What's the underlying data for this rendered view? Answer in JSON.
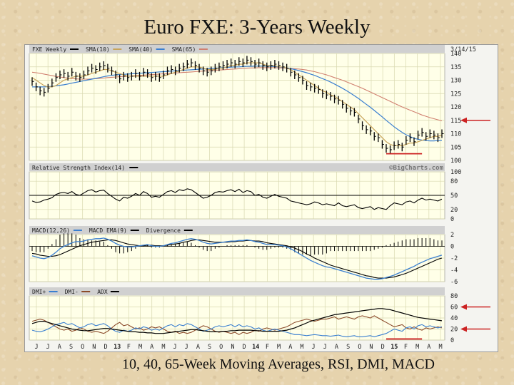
{
  "title": "Euro FXE: 3-Years Weekly",
  "caption": "10, 40, 65-Week Moving Averages, RSI, DMI, MACD",
  "chart_data": {
    "type": "line",
    "date": "3/14/15",
    "watermark": "©BigCharts.com",
    "x_labels": [
      "J",
      "J",
      "A",
      "S",
      "O",
      "N",
      "D",
      "13",
      "F",
      "M",
      "A",
      "M",
      "J",
      "J",
      "A",
      "S",
      "O",
      "N",
      "D",
      "14",
      "F",
      "M",
      "A",
      "M",
      "J",
      "J",
      "A",
      "S",
      "O",
      "N",
      "D",
      "15",
      "F",
      "M",
      "A",
      "M"
    ],
    "price": {
      "legend": [
        "FXE Weekly",
        "SMA(10)",
        "SMA(40)",
        "SMA(65)"
      ],
      "ylim": [
        100,
        140
      ],
      "yticks": [
        100,
        105,
        110,
        115,
        120,
        125,
        130,
        135,
        140
      ],
      "tick_labels": [
        "100",
        "105",
        "110",
        "115",
        "120",
        "125",
        "130",
        "135",
        "140"
      ],
      "close": [
        129.5,
        127.5,
        126.0,
        125.5,
        127.0,
        129.0,
        131.0,
        132.0,
        132.5,
        131.5,
        133.0,
        131.5,
        131.0,
        132.0,
        133.5,
        134.5,
        134.0,
        135.0,
        135.5,
        134.5,
        133.5,
        132.0,
        130.5,
        131.5,
        131.0,
        131.5,
        132.5,
        131.5,
        133.0,
        132.5,
        131.0,
        131.5,
        131.0,
        132.0,
        133.5,
        134.0,
        133.5,
        134.5,
        135.0,
        136.0,
        136.5,
        135.5,
        134.5,
        133.5,
        133.0,
        133.5,
        134.5,
        135.0,
        135.5,
        136.0,
        136.5,
        136.0,
        137.0,
        136.5,
        137.5,
        137.0,
        136.0,
        136.5,
        135.5,
        135.0,
        135.5,
        136.0,
        135.5,
        135.0,
        134.5,
        133.0,
        132.0,
        131.0,
        130.0,
        128.0,
        127.5,
        127.0,
        126.5,
        125.0,
        124.5,
        124.0,
        123.0,
        122.5,
        121.0,
        119.5,
        118.5,
        118.0,
        115.5,
        113.0,
        111.5,
        111.0,
        109.0,
        108.5,
        106.0,
        104.5,
        104.0,
        105.5,
        106.0,
        105.0,
        107.5,
        108.5,
        107.0,
        109.5,
        110.5,
        109.0,
        110.0,
        109.5,
        108.5,
        110.0
      ],
      "sma10": [
        131.0,
        130.0,
        129.0,
        128.0,
        127.5,
        127.5,
        128.0,
        129.0,
        130.0,
        130.5,
        131.0,
        131.5,
        131.5,
        131.5,
        132.0,
        132.5,
        133.0,
        133.5,
        134.0,
        134.0,
        133.5,
        133.0,
        132.5,
        132.0,
        131.5,
        131.5,
        131.5,
        131.5,
        131.5,
        131.5,
        131.5,
        131.5,
        131.5,
        131.5,
        132.0,
        132.5,
        133.0,
        133.5,
        134.0,
        134.5,
        135.0,
        135.0,
        135.0,
        134.5,
        134.0,
        134.0,
        134.0,
        134.5,
        134.5,
        135.0,
        135.5,
        135.5,
        136.0,
        136.0,
        136.5,
        136.5,
        136.5,
        136.5,
        136.0,
        135.5,
        135.5,
        135.5,
        135.0,
        135.0,
        134.5,
        134.0,
        133.0,
        132.0,
        131.0,
        130.0,
        129.0,
        128.0,
        127.0,
        126.0,
        125.5,
        124.5,
        124.0,
        123.0,
        122.0,
        121.0,
        120.0,
        119.0,
        117.5,
        116.0,
        114.5,
        113.0,
        111.5,
        110.0,
        108.5,
        107.0,
        106.0,
        105.5,
        105.5,
        105.5,
        106.0,
        106.5,
        106.5,
        107.0,
        107.5,
        108.0,
        108.5,
        109.0,
        109.0,
        109.5
      ],
      "sma40": [
        127.5,
        127.5,
        127.5,
        127.5,
        127.6,
        127.7,
        127.9,
        128.1,
        128.3,
        128.6,
        128.9,
        129.2,
        129.5,
        129.8,
        130.1,
        130.4,
        130.7,
        131.0,
        131.3,
        131.6,
        131.8,
        132.0,
        132.1,
        132.2,
        132.3,
        132.4,
        132.5,
        132.6,
        132.7,
        132.8,
        132.9,
        133.0,
        133.1,
        133.2,
        133.3,
        133.4,
        133.5,
        133.6,
        133.7,
        133.8,
        133.9,
        134.0,
        134.1,
        134.2,
        134.3,
        134.4,
        134.5,
        134.6,
        134.7,
        134.8,
        134.9,
        135.0,
        135.0,
        135.1,
        135.2,
        135.2,
        135.3,
        135.3,
        135.3,
        135.3,
        135.2,
        135.1,
        135.0,
        134.8,
        134.6,
        134.3,
        134.0,
        133.6,
        133.2,
        132.8,
        132.3,
        131.8,
        131.2,
        130.6,
        130.0,
        129.3,
        128.6,
        127.8,
        127.0,
        126.1,
        125.2,
        124.2,
        123.2,
        122.1,
        121.0,
        119.9,
        118.7,
        117.5,
        116.3,
        115.0,
        113.8,
        112.6,
        111.5,
        110.5,
        109.6,
        108.9,
        108.3,
        107.9,
        107.6,
        107.4,
        107.3,
        107.3,
        107.4,
        107.5
      ],
      "sma65": [
        133.0,
        132.8,
        132.6,
        132.3,
        132.0,
        131.7,
        131.4,
        131.2,
        131.0,
        130.8,
        130.6,
        130.5,
        130.4,
        130.4,
        130.4,
        130.5,
        130.6,
        130.7,
        130.8,
        131.0,
        131.1,
        131.2,
        131.3,
        131.4,
        131.5,
        131.6,
        131.7,
        131.8,
        131.9,
        132.0,
        132.1,
        132.2,
        132.3,
        132.4,
        132.5,
        132.6,
        132.7,
        132.8,
        132.9,
        133.0,
        133.1,
        133.2,
        133.3,
        133.4,
        133.5,
        133.6,
        133.7,
        133.8,
        133.9,
        134.0,
        134.1,
        134.2,
        134.3,
        134.4,
        134.5,
        134.6,
        134.6,
        134.7,
        134.7,
        134.7,
        134.7,
        134.7,
        134.6,
        134.6,
        134.5,
        134.4,
        134.3,
        134.2,
        134.0,
        133.8,
        133.5,
        133.2,
        132.8,
        132.4,
        132.0,
        131.5,
        131.0,
        130.5,
        130.0,
        129.4,
        128.8,
        128.2,
        127.6,
        127.0,
        126.3,
        125.6,
        124.9,
        124.2,
        123.5,
        122.8,
        122.1,
        121.4,
        120.7,
        120.0,
        119.4,
        118.8,
        118.2,
        117.6,
        117.0,
        116.5,
        116.0,
        115.6,
        115.2,
        114.8
      ]
    },
    "rsi": {
      "legend": [
        "Relative Strength Index(14)"
      ],
      "ylim": [
        0,
        100
      ],
      "yticks": [
        0,
        20,
        50,
        80,
        100
      ],
      "tick_labels": [
        "0",
        "20",
        "50",
        "80",
        "100"
      ],
      "values": [
        38,
        35,
        36,
        40,
        42,
        45,
        52,
        55,
        56,
        54,
        58,
        52,
        50,
        55,
        60,
        62,
        57,
        60,
        61,
        54,
        48,
        42,
        38,
        46,
        44,
        48,
        54,
        50,
        58,
        54,
        46,
        48,
        46,
        52,
        58,
        60,
        56,
        62,
        60,
        64,
        62,
        56,
        50,
        44,
        46,
        50,
        56,
        58,
        57,
        60,
        62,
        58,
        63,
        56,
        60,
        58,
        50,
        52,
        46,
        44,
        48,
        52,
        48,
        46,
        44,
        38,
        36,
        34,
        32,
        30,
        32,
        36,
        34,
        30,
        32,
        30,
        28,
        34,
        28,
        26,
        28,
        30,
        24,
        22,
        24,
        26,
        20,
        24,
        22,
        20,
        28,
        34,
        32,
        30,
        36,
        38,
        34,
        40,
        44,
        40,
        42,
        40,
        38,
        42
      ]
    },
    "macd": {
      "legend": [
        "MACD(12,26)",
        "MACD EMA(9)",
        "Divergence"
      ],
      "ylim": [
        -6,
        2
      ],
      "yticks": [
        -6,
        -4,
        -2,
        0,
        2
      ],
      "tick_labels": [
        "-6",
        "-4",
        "-2",
        "0",
        "2"
      ],
      "macd": [
        -1.6,
        -1.8,
        -2.0,
        -2.1,
        -1.9,
        -1.5,
        -1.0,
        -0.4,
        0.0,
        0.3,
        0.6,
        0.8,
        0.8,
        0.9,
        1.1,
        1.2,
        1.3,
        1.3,
        1.4,
        1.2,
        0.9,
        0.5,
        0.2,
        0.0,
        -0.1,
        -0.1,
        0.0,
        0.1,
        0.2,
        0.3,
        0.1,
        0.0,
        0.0,
        0.1,
        0.3,
        0.5,
        0.6,
        0.8,
        1.0,
        1.2,
        1.3,
        1.2,
        1.0,
        0.7,
        0.5,
        0.4,
        0.5,
        0.6,
        0.7,
        0.8,
        0.9,
        0.9,
        1.0,
        1.0,
        1.1,
        1.0,
        0.8,
        0.7,
        0.5,
        0.3,
        0.3,
        0.3,
        0.2,
        0.1,
        -0.1,
        -0.4,
        -0.8,
        -1.2,
        -1.6,
        -2.0,
        -2.4,
        -2.7,
        -3.0,
        -3.3,
        -3.5,
        -3.6,
        -3.8,
        -4.0,
        -4.2,
        -4.4,
        -4.6,
        -4.8,
        -5.0,
        -5.2,
        -5.4,
        -5.5,
        -5.6,
        -5.6,
        -5.5,
        -5.3,
        -5.1,
        -4.9,
        -4.6,
        -4.3,
        -4.0,
        -3.7,
        -3.4,
        -3.0,
        -2.7,
        -2.4,
        -2.1,
        -1.9,
        -1.7,
        -1.5
      ],
      "signal": [
        -1.2,
        -1.3,
        -1.5,
        -1.6,
        -1.7,
        -1.7,
        -1.6,
        -1.4,
        -1.1,
        -0.8,
        -0.5,
        -0.2,
        0.1,
        0.3,
        0.5,
        0.7,
        0.8,
        0.9,
        1.0,
        1.1,
        1.1,
        1.0,
        0.8,
        0.6,
        0.4,
        0.3,
        0.2,
        0.1,
        0.1,
        0.2,
        0.2,
        0.1,
        0.1,
        0.1,
        0.2,
        0.3,
        0.4,
        0.5,
        0.7,
        0.8,
        1.0,
        1.1,
        1.1,
        1.0,
        0.9,
        0.8,
        0.7,
        0.7,
        0.7,
        0.7,
        0.8,
        0.8,
        0.9,
        0.9,
        1.0,
        1.0,
        0.9,
        0.9,
        0.8,
        0.6,
        0.5,
        0.4,
        0.3,
        0.2,
        0.1,
        -0.1,
        -0.3,
        -0.6,
        -0.9,
        -1.3,
        -1.6,
        -2.0,
        -2.3,
        -2.6,
        -2.9,
        -3.2,
        -3.4,
        -3.6,
        -3.8,
        -4.0,
        -4.2,
        -4.4,
        -4.6,
        -4.8,
        -5.0,
        -5.1,
        -5.3,
        -5.4,
        -5.4,
        -5.4,
        -5.3,
        -5.2,
        -5.0,
        -4.8,
        -4.6,
        -4.3,
        -4.0,
        -3.7,
        -3.4,
        -3.1,
        -2.8,
        -2.5,
        -2.2,
        -2.0
      ]
    },
    "dmi": {
      "legend": [
        "DMI+",
        "DMI-",
        "ADX"
      ],
      "ylim": [
        0,
        80
      ],
      "yticks": [
        0,
        20,
        40,
        60,
        80
      ],
      "tick_labels": [
        "0",
        "20",
        "40",
        "60",
        "80"
      ],
      "dmi_plus": [
        18,
        16,
        15,
        17,
        20,
        24,
        28,
        30,
        32,
        28,
        30,
        26,
        22,
        24,
        28,
        30,
        26,
        28,
        30,
        26,
        20,
        16,
        14,
        18,
        16,
        18,
        22,
        20,
        24,
        22,
        18,
        20,
        18,
        22,
        26,
        28,
        24,
        28,
        26,
        30,
        28,
        24,
        20,
        16,
        18,
        20,
        24,
        26,
        24,
        26,
        28,
        24,
        28,
        24,
        26,
        24,
        20,
        22,
        18,
        16,
        18,
        20,
        18,
        16,
        14,
        12,
        10,
        10,
        9,
        8,
        9,
        10,
        9,
        8,
        8,
        7,
        8,
        9,
        7,
        6,
        7,
        8,
        6,
        6,
        7,
        8,
        6,
        8,
        10,
        12,
        16,
        20,
        18,
        16,
        22,
        24,
        20,
        26,
        28,
        24,
        26,
        24,
        22,
        24
      ],
      "dmi_minus": [
        34,
        36,
        38,
        36,
        32,
        28,
        24,
        20,
        18,
        20,
        16,
        18,
        22,
        20,
        16,
        14,
        16,
        14,
        12,
        16,
        22,
        28,
        32,
        26,
        28,
        24,
        20,
        22,
        18,
        20,
        24,
        22,
        24,
        20,
        16,
        14,
        16,
        12,
        14,
        12,
        14,
        18,
        22,
        26,
        24,
        20,
        16,
        14,
        16,
        14,
        12,
        14,
        10,
        14,
        12,
        14,
        18,
        16,
        20,
        22,
        20,
        18,
        20,
        22,
        24,
        28,
        32,
        34,
        36,
        38,
        36,
        34,
        36,
        38,
        38,
        40,
        42,
        38,
        40,
        42,
        40,
        38,
        42,
        44,
        42,
        40,
        44,
        40,
        36,
        32,
        28,
        24,
        26,
        28,
        22,
        20,
        24,
        20,
        18,
        22,
        20,
        22,
        24,
        22
      ],
      "adx": [
        30,
        32,
        34,
        34,
        32,
        30,
        28,
        26,
        24,
        22,
        20,
        19,
        18,
        17,
        17,
        18,
        19,
        20,
        21,
        21,
        20,
        19,
        18,
        17,
        16,
        15,
        15,
        14,
        14,
        13,
        13,
        12,
        12,
        12,
        13,
        14,
        15,
        16,
        17,
        18,
        19,
        19,
        18,
        17,
        16,
        15,
        15,
        15,
        16,
        16,
        17,
        17,
        18,
        18,
        18,
        18,
        17,
        17,
        16,
        16,
        16,
        16,
        16,
        17,
        18,
        20,
        22,
        25,
        28,
        31,
        34,
        36,
        38,
        40,
        42,
        44,
        46,
        47,
        48,
        49,
        50,
        51,
        52,
        53,
        54,
        55,
        56,
        57,
        57,
        56,
        55,
        53,
        51,
        49,
        47,
        45,
        43,
        41,
        40,
        39,
        38,
        37,
        36,
        35
      ]
    },
    "annotations": [
      {
        "type": "arrow",
        "panel": "price",
        "value": 115,
        "color": "#cc2222"
      },
      {
        "type": "hline",
        "panel": "price",
        "value": 102.5,
        "color": "#cc2222"
      },
      {
        "type": "arrow",
        "panel": "dmi",
        "value": 60,
        "color": "#cc2222"
      },
      {
        "type": "arrow",
        "panel": "dmi",
        "value": 20,
        "color": "#cc2222"
      },
      {
        "type": "hline",
        "panel": "dmi",
        "value": 2,
        "color": "#cc2222"
      }
    ],
    "colors": {
      "price": "#000000",
      "sma10": "#c8a45a",
      "sma40": "#3a7fd0",
      "sma65": "#d08070",
      "macd": "#3a7fd0",
      "signal": "#000000",
      "divergence": "#000000",
      "dmi_plus": "#3a7fd0",
      "dmi_minus": "#8b4a2a",
      "adx": "#000000",
      "grid": "#d8d8b0",
      "panel_bg": "#ffffe8",
      "header_bg": "#d0d0d0"
    }
  }
}
